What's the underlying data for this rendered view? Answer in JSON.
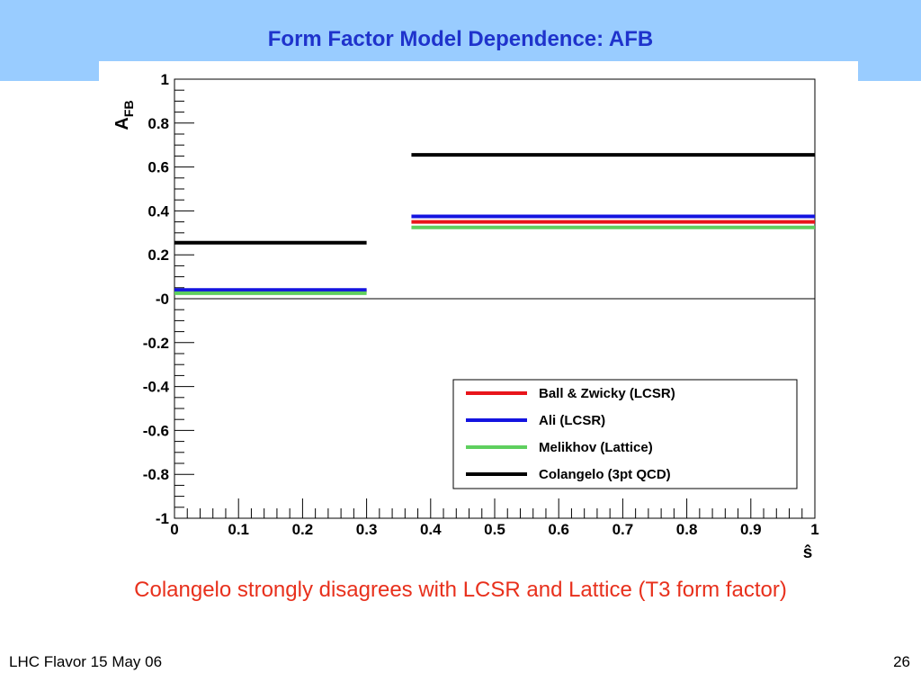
{
  "slide": {
    "title": "Form Factor Model Dependence:  AFB",
    "caption": "Colangelo strongly disagrees with LCSR and Lattice  (T3 form factor)",
    "footer_left": "LHC Flavor 15 May 06",
    "page_number": "26"
  },
  "colors": {
    "banner": "#99ccff",
    "title": "#1f33cc",
    "caption": "#e8301c"
  },
  "chart_data": {
    "type": "line",
    "xlabel": "ŝ",
    "ylabel_main": "A",
    "ylabel_sub": "FB",
    "xlim": [
      0,
      1
    ],
    "ylim": [
      -1,
      1
    ],
    "x_ticks": [
      "0",
      "0.1",
      "0.2",
      "0.3",
      "0.4",
      "0.5",
      "0.6",
      "0.7",
      "0.8",
      "0.9",
      "1"
    ],
    "x_tick_values": [
      0,
      0.1,
      0.2,
      0.3,
      0.4,
      0.5,
      0.6,
      0.7,
      0.8,
      0.9,
      1
    ],
    "y_ticks": [
      "-1",
      "-0.8",
      "-0.6",
      "-0.4",
      "-0.2",
      "-0",
      "0.2",
      "0.4",
      "0.6",
      "0.8",
      "1"
    ],
    "y_tick_values": [
      -1,
      -0.8,
      -0.6,
      -0.4,
      -0.2,
      0,
      0.2,
      0.4,
      0.6,
      0.8,
      1
    ],
    "zero_line": true,
    "grid": false,
    "legend_position": "bottom-right",
    "series": [
      {
        "name": "Ball & Zwicky (LCSR)",
        "color": "#e8141a",
        "segments": [
          {
            "x": [
              0,
              0.3
            ],
            "y": 0.035
          },
          {
            "x": [
              0.37,
              1
            ],
            "y": 0.35
          }
        ]
      },
      {
        "name": "Ali (LCSR)",
        "color": "#1414e0",
        "segments": [
          {
            "x": [
              0,
              0.3
            ],
            "y": 0.04
          },
          {
            "x": [
              0.37,
              1
            ],
            "y": 0.375
          }
        ]
      },
      {
        "name": "Melikhov (Lattice)",
        "color": "#5ecf5e",
        "segments": [
          {
            "x": [
              0,
              0.3
            ],
            "y": 0.025
          },
          {
            "x": [
              0.37,
              1
            ],
            "y": 0.325
          }
        ]
      },
      {
        "name": "Colangelo (3pt QCD)",
        "color": "#000000",
        "segments": [
          {
            "x": [
              0,
              0.3
            ],
            "y": 0.255
          },
          {
            "x": [
              0.37,
              1
            ],
            "y": 0.655
          }
        ]
      }
    ]
  }
}
